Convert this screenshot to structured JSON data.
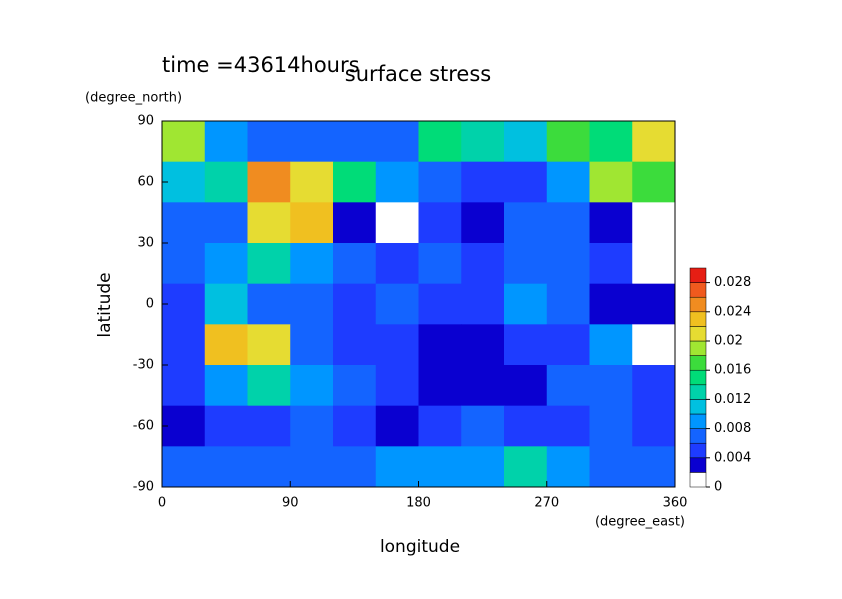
{
  "chart_data": {
    "type": "contour",
    "title": "surface stress",
    "subtitle": "time =43614hours",
    "x_label": "longitude",
    "x_units": "(degree_east)",
    "y_label": "latitude",
    "y_units": "(degree_north)",
    "xlim": [
      0,
      360
    ],
    "xticks": [
      0,
      90,
      180,
      270,
      360
    ],
    "ylim": [
      -90,
      90
    ],
    "yticks": [
      -90,
      -60,
      -30,
      0,
      30,
      60,
      90
    ],
    "lon": [
      15,
      45,
      75,
      105,
      135,
      165,
      195,
      225,
      255,
      285,
      315,
      345
    ],
    "lat": [
      80,
      60,
      40,
      20,
      0,
      -20,
      -40,
      -60,
      -80
    ],
    "values": [
      [
        0.018,
        0.008,
        0.006,
        0.006,
        0.006,
        0.006,
        0.014,
        0.012,
        0.01,
        0.016,
        0.014,
        0.02
      ],
      [
        0.01,
        0.012,
        0.024,
        0.02,
        0.014,
        0.008,
        0.006,
        0.004,
        0.004,
        0.008,
        0.018,
        0.016
      ],
      [
        0.006,
        0.006,
        0.02,
        0.022,
        0.003,
        0.001,
        0.004,
        0.002,
        0.006,
        0.006,
        0.003,
        0.001
      ],
      [
        0.006,
        0.008,
        0.012,
        0.008,
        0.006,
        0.004,
        0.006,
        0.004,
        0.006,
        0.006,
        0.004,
        0.001
      ],
      [
        0.004,
        0.01,
        0.006,
        0.006,
        0.004,
        0.006,
        0.004,
        0.004,
        0.008,
        0.006,
        0.002,
        0.003
      ],
      [
        0.004,
        0.022,
        0.02,
        0.006,
        0.005,
        0.004,
        0.003,
        0.002,
        0.004,
        0.004,
        0.008,
        0.001
      ],
      [
        0.004,
        0.008,
        0.012,
        0.008,
        0.006,
        0.004,
        0.002,
        0.002,
        0.003,
        0.006,
        0.006,
        0.004
      ],
      [
        0.002,
        0.004,
        0.004,
        0.006,
        0.004,
        0.002,
        0.004,
        0.006,
        0.004,
        0.004,
        0.006,
        0.004
      ],
      [
        0.006,
        0.006,
        0.006,
        0.006,
        0.006,
        0.008,
        0.008,
        0.008,
        0.012,
        0.008,
        0.006,
        0.006
      ]
    ],
    "colorbar": {
      "levels": [
        0,
        0.002,
        0.004,
        0.006,
        0.008,
        0.01,
        0.012,
        0.014,
        0.016,
        0.018,
        0.02,
        0.022,
        0.024,
        0.026,
        0.028,
        0.03
      ],
      "colors": [
        "#ffffff",
        "#0a00d0",
        "#1e3cff",
        "#1464ff",
        "#0096ff",
        "#00c0e0",
        "#00d2aa",
        "#00dc78",
        "#3cdc3c",
        "#a0e632",
        "#e6dc32",
        "#f0c020",
        "#f08c20",
        "#f05a1e",
        "#e61e14"
      ],
      "ticks": [
        0,
        0.004,
        0.008,
        0.012,
        0.016,
        0.02,
        0.024,
        0.028
      ]
    }
  }
}
